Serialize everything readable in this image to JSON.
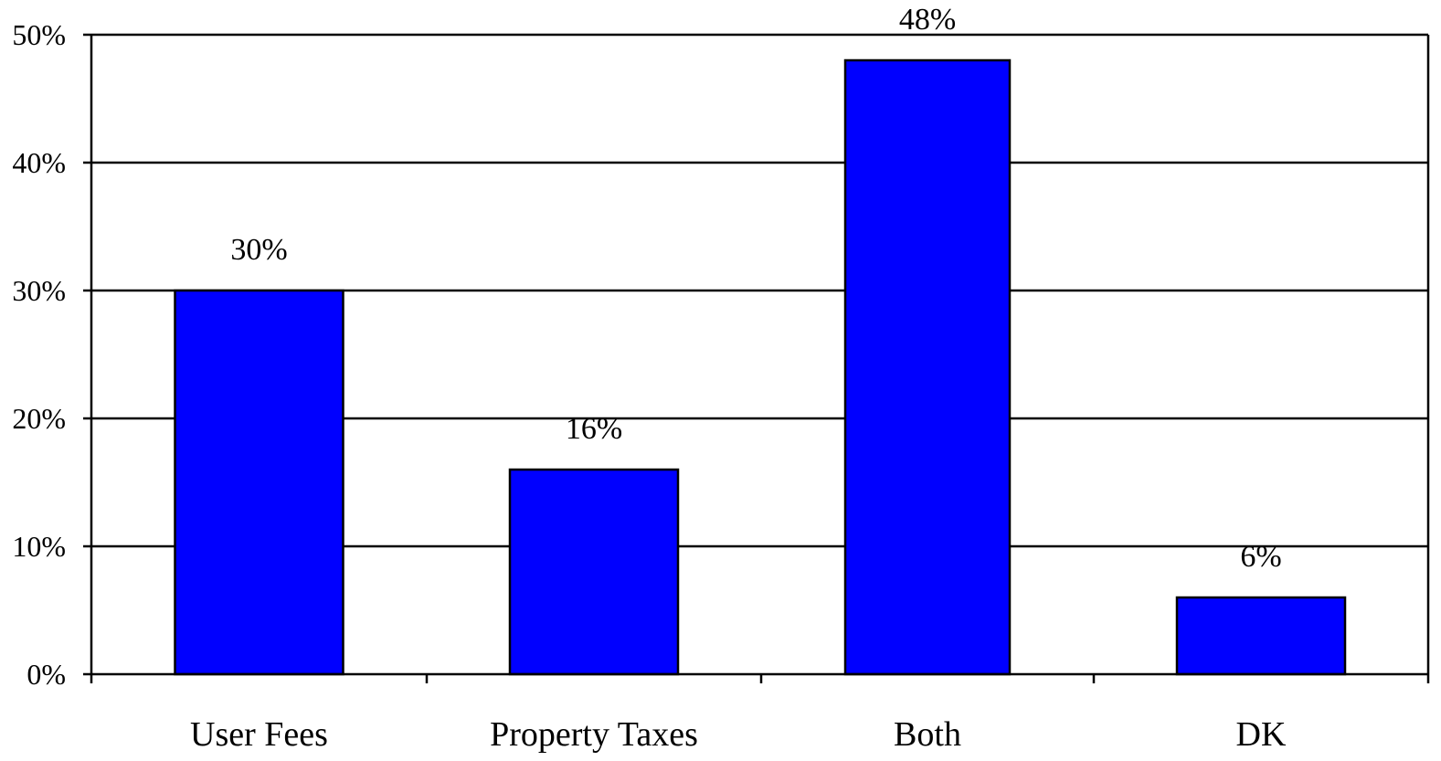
{
  "chart_data": {
    "type": "bar",
    "categories": [
      "User Fees",
      "Property Taxes",
      "Both",
      "DK"
    ],
    "values": [
      30,
      16,
      48,
      6
    ],
    "data_labels": [
      "30%",
      "16%",
      "48%",
      "6%"
    ],
    "ylim": [
      0,
      50
    ],
    "y_ticks": [
      0,
      10,
      20,
      30,
      40,
      50
    ],
    "y_tick_labels": [
      "0%",
      "10%",
      "20%",
      "30%",
      "40%",
      "50%"
    ],
    "title": "",
    "xlabel": "",
    "ylabel": "",
    "grid": true,
    "legend": "none",
    "colors": {
      "bar_fill": "#0000ff",
      "bar_stroke": "#000000",
      "grid": "#000000",
      "axis": "#000000"
    }
  }
}
